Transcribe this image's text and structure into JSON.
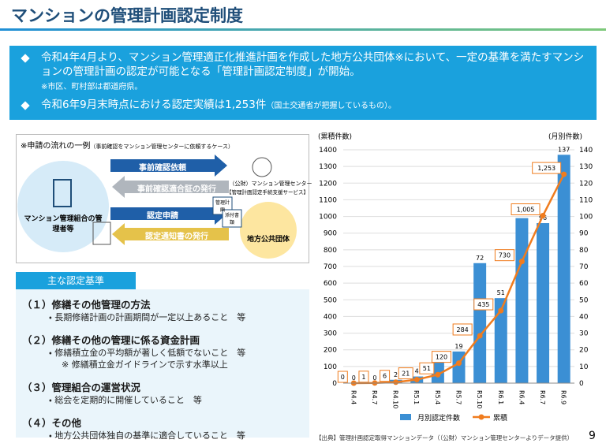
{
  "header": {
    "title": "マンションの管理計画認定制度"
  },
  "summary": {
    "bullet1": "令和4年4月より、マンション管理適正化推進計画を作成した地方公共団体※において、一定の基準を満たすマンションの管理計画の認定が可能となる「管理計画認定制度」が開始。",
    "note1": "※市区、町村部は都道府県。",
    "bullet2": "令和6年9月末時点における認定実績は1,253件",
    "bullet2_small": "（国土交通省が把握しているもの）。"
  },
  "flow": {
    "title": "※申請の流れの一例",
    "subtitle": "（事前確認をマンション管理センターに依頼するケース）",
    "applicant": "マンション管理組合の管理者等",
    "center_name": "（公財）マンション管理センター",
    "center_service": "【管理計画認定手続支援サービス】",
    "authority": "地方公共団体",
    "arrows": [
      "事前確認依頼",
      "事前確認適合証の発行",
      "認定申請",
      "認定通知書の発行"
    ],
    "documents": [
      "管理計画",
      "添付書類"
    ]
  },
  "criteria": {
    "heading": "主な認定基準",
    "items": [
      {
        "title": "（１）修繕その他管理の方法",
        "details": [
          "・ 長期修繕計画の計画期間が一定以上あること　等"
        ]
      },
      {
        "title": "（２）修繕その他の管理に係る資金計画",
        "details": [
          "・ 修繕積立金の平均額が著しく低額でないこと　等",
          "※ 修繕積立金ガイドラインで示す水準以上"
        ]
      },
      {
        "title": "（３）管理組合の運営状況",
        "details": [
          "・ 総会を定期的に開催していること　等"
        ]
      },
      {
        "title": "（４）その他",
        "details": [
          "・ 地方公共団体独自の基準に適合していること　等"
        ]
      }
    ]
  },
  "chart_data": {
    "type": "bar",
    "y_label": "(累積件数)",
    "y2_label": "(月別件数)",
    "categories": [
      "R4.4",
      "R4.7",
      "R4.10",
      "R5.1",
      "R5.4",
      "R5.7",
      "R5.10",
      "R6.1",
      "R6.4",
      "R6.7",
      "R6.9"
    ],
    "series": [
      {
        "name": "月別認定件数",
        "type": "bar",
        "axis": "y2",
        "color": "#3b8fd4",
        "values": [
          0,
          0,
          2,
          4,
          14,
          19,
          72,
          51,
          99,
          96,
          137
        ]
      },
      {
        "name": "累積",
        "type": "line",
        "color": "#f07c1e",
        "values": [
          0,
          1,
          6,
          21,
          51,
          120,
          284,
          435,
          730,
          1005,
          1253
        ],
        "value_labels": [
          "0",
          "1",
          "6",
          "21",
          "51",
          "120",
          "284",
          "435",
          "730",
          "1,005",
          "1,253"
        ]
      }
    ],
    "ylim": [
      0,
      1400
    ],
    "yticks": [
      0,
      100,
      200,
      300,
      400,
      500,
      600,
      700,
      800,
      900,
      1000,
      1100,
      1200,
      1300,
      1400
    ],
    "y2lim": [
      0,
      140
    ],
    "y2ticks": [
      0,
      10,
      20,
      30,
      40,
      50,
      60,
      70,
      80,
      90,
      100,
      110,
      120,
      130,
      140
    ],
    "grid": true
  },
  "footer": {
    "source": "【出典】管理計画認定取得マンションデータ（（公財）マンション管理センターよりデータ提供）",
    "page": "9"
  }
}
